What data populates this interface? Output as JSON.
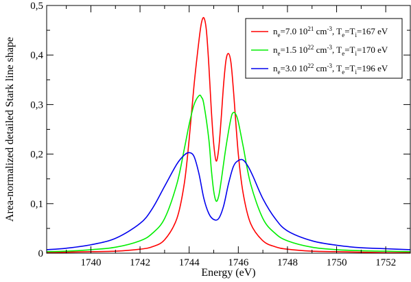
{
  "chart_data": {
    "type": "line",
    "title": "",
    "xlabel": "Energy (eV)",
    "ylabel": "Area-normalized detailed Stark line shape",
    "xlim": [
      1738.2,
      1753.0
    ],
    "ylim": [
      0,
      0.5
    ],
    "x_ticks": [
      1740,
      1742,
      1744,
      1746,
      1748,
      1750,
      1752
    ],
    "x_tick_labels": [
      "1740",
      "1742",
      "1744",
      "1746",
      "1748",
      "1750",
      "1752"
    ],
    "y_ticks": [
      0,
      0.1,
      0.2,
      0.3,
      0.4,
      0.5
    ],
    "y_tick_labels": [
      "0",
      "0,1",
      "0,2",
      "0,3",
      "0,4",
      "0,5"
    ],
    "grid": false,
    "legend_position": "top-right",
    "series": [
      {
        "name": "n_e=7.0 10^21 cm^-3, T_e=T_i=167 eV",
        "legend_parts": {
          "n": "n",
          "n_sub": "e",
          "density": "=7.0 10",
          "exp": "21",
          "unit": " cm",
          "unit_exp": "-3",
          "t1": ", T",
          "t1_sub": "e",
          "t2": "=T",
          "t2_sub": "i",
          "temp": "=167 eV"
        },
        "color": "#ff0000",
        "x": [
          1738.2,
          1739.0,
          1740.0,
          1741.0,
          1742.0,
          1742.5,
          1743.0,
          1743.5,
          1743.8,
          1744.0,
          1744.2,
          1744.4,
          1744.5,
          1744.6,
          1744.7,
          1744.8,
          1744.9,
          1745.0,
          1745.1,
          1745.2,
          1745.3,
          1745.4,
          1745.5,
          1745.6,
          1745.7,
          1745.8,
          1746.0,
          1746.2,
          1746.5,
          1747.0,
          1747.5,
          1748.0,
          1749.0,
          1750.0,
          1751.0,
          1752.0,
          1753.0
        ],
        "y": [
          0.001,
          0.002,
          0.003,
          0.004,
          0.008,
          0.013,
          0.027,
          0.07,
          0.14,
          0.23,
          0.34,
          0.43,
          0.465,
          0.475,
          0.45,
          0.38,
          0.29,
          0.22,
          0.186,
          0.21,
          0.27,
          0.34,
          0.39,
          0.403,
          0.385,
          0.33,
          0.2,
          0.12,
          0.06,
          0.025,
          0.013,
          0.008,
          0.004,
          0.003,
          0.002,
          0.001,
          0.001
        ]
      },
      {
        "name": "n_e=1.5 10^22 cm^-3, T_e=T_i=170 eV",
        "legend_parts": {
          "n": "n",
          "n_sub": "e",
          "density": "=1.5 10",
          "exp": "22",
          "unit": " cm",
          "unit_exp": "-3",
          "t1": ", T",
          "t1_sub": "e",
          "t2": "=T",
          "t2_sub": "i",
          "temp": "=170 eV"
        },
        "color": "#00ee00",
        "x": [
          1738.2,
          1739.0,
          1740.0,
          1741.0,
          1742.0,
          1742.5,
          1743.0,
          1743.5,
          1743.8,
          1744.0,
          1744.2,
          1744.4,
          1744.5,
          1744.6,
          1744.8,
          1744.9,
          1745.0,
          1745.1,
          1745.2,
          1745.3,
          1745.5,
          1745.7,
          1745.8,
          1745.9,
          1746.0,
          1746.2,
          1746.5,
          1747.0,
          1747.5,
          1748.0,
          1749.0,
          1750.0,
          1751.0,
          1752.0,
          1753.0
        ],
        "y": [
          0.003,
          0.004,
          0.007,
          0.012,
          0.025,
          0.04,
          0.07,
          0.14,
          0.21,
          0.26,
          0.3,
          0.318,
          0.315,
          0.3,
          0.23,
          0.17,
          0.125,
          0.105,
          0.115,
          0.145,
          0.215,
          0.272,
          0.284,
          0.28,
          0.265,
          0.215,
          0.14,
          0.07,
          0.04,
          0.025,
          0.012,
          0.007,
          0.005,
          0.004,
          0.003
        ]
      },
      {
        "name": "n_e=3.0 10^22 cm^-3, T_e=T_i=196 eV",
        "legend_parts": {
          "n": "n",
          "n_sub": "e",
          "density": "=3.0 10",
          "exp": "22",
          "unit": " cm",
          "unit_exp": "-3",
          "t1": ", T",
          "t1_sub": "e",
          "t2": "=T",
          "t2_sub": "i",
          "temp": "=196 eV"
        },
        "color": "#0000ee",
        "x": [
          1738.2,
          1739.0,
          1740.0,
          1741.0,
          1742.0,
          1742.5,
          1743.0,
          1743.5,
          1743.8,
          1744.0,
          1744.2,
          1744.4,
          1744.6,
          1744.8,
          1745.0,
          1745.2,
          1745.4,
          1745.6,
          1745.8,
          1746.0,
          1746.2,
          1746.4,
          1746.6,
          1747.0,
          1747.5,
          1748.0,
          1749.0,
          1750.0,
          1751.0,
          1752.0,
          1753.0
        ],
        "y": [
          0.007,
          0.01,
          0.017,
          0.03,
          0.06,
          0.09,
          0.135,
          0.18,
          0.198,
          0.203,
          0.195,
          0.16,
          0.11,
          0.08,
          0.068,
          0.07,
          0.095,
          0.14,
          0.175,
          0.187,
          0.188,
          0.175,
          0.155,
          0.11,
          0.07,
          0.045,
          0.025,
          0.016,
          0.011,
          0.009,
          0.007
        ]
      }
    ]
  }
}
